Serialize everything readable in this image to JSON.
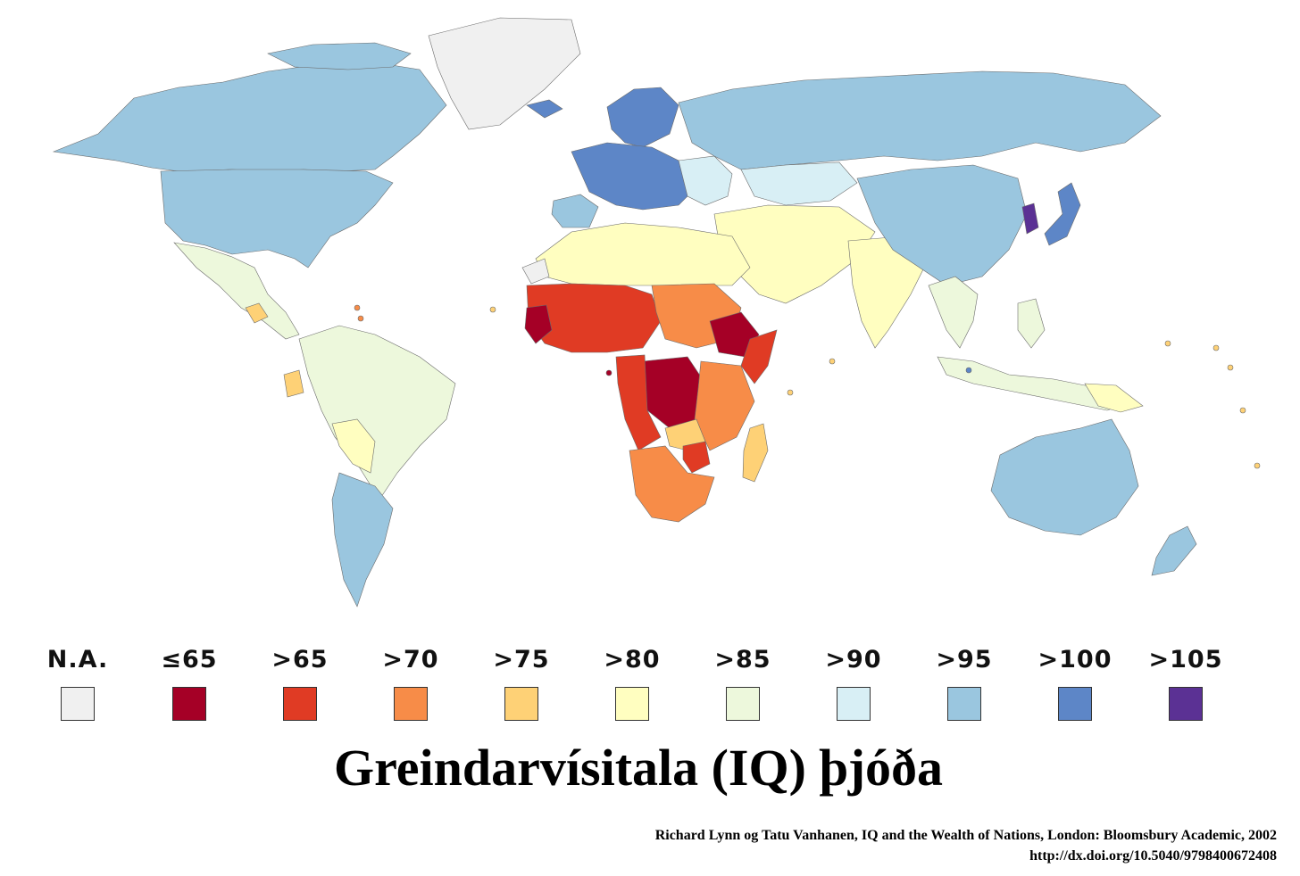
{
  "map": {
    "title": "Greindarvísitala (IQ) þjóða",
    "colors": {
      "na": "#f0f0f0",
      "le65": "#a50026",
      "gt65": "#e03b24",
      "gt70": "#f78c48",
      "gt75": "#fed176",
      "gt80": "#fffec0",
      "gt85": "#edf8dc",
      "gt90": "#d8eff5",
      "gt95": "#9ac6df",
      "gt100": "#5d86c7",
      "gt105": "#5b3194"
    }
  },
  "legend": [
    {
      "label": "N.A.",
      "color": "#f0f0f0"
    },
    {
      "label": "≤65",
      "color": "#a50026"
    },
    {
      "label": ">65",
      "color": "#e03b24"
    },
    {
      "label": ">70",
      "color": "#f78c48"
    },
    {
      "label": ">75",
      "color": "#fed176"
    },
    {
      "label": ">80",
      "color": "#fffec0"
    },
    {
      "label": ">85",
      "color": "#edf8dc"
    },
    {
      "label": ">90",
      "color": "#d8eff5"
    },
    {
      "label": ">95",
      "color": "#9ac6df"
    },
    {
      "label": ">100",
      "color": "#5d86c7"
    },
    {
      "label": ">105",
      "color": "#5b3194"
    }
  ],
  "citation": {
    "line1": "Richard Lynn og Tatu Vanhanen, IQ and the Wealth of Nations, London: Bloomsbury Academic, 2002",
    "line2": "http://dx.doi.org/10.5040/9798400672408"
  }
}
